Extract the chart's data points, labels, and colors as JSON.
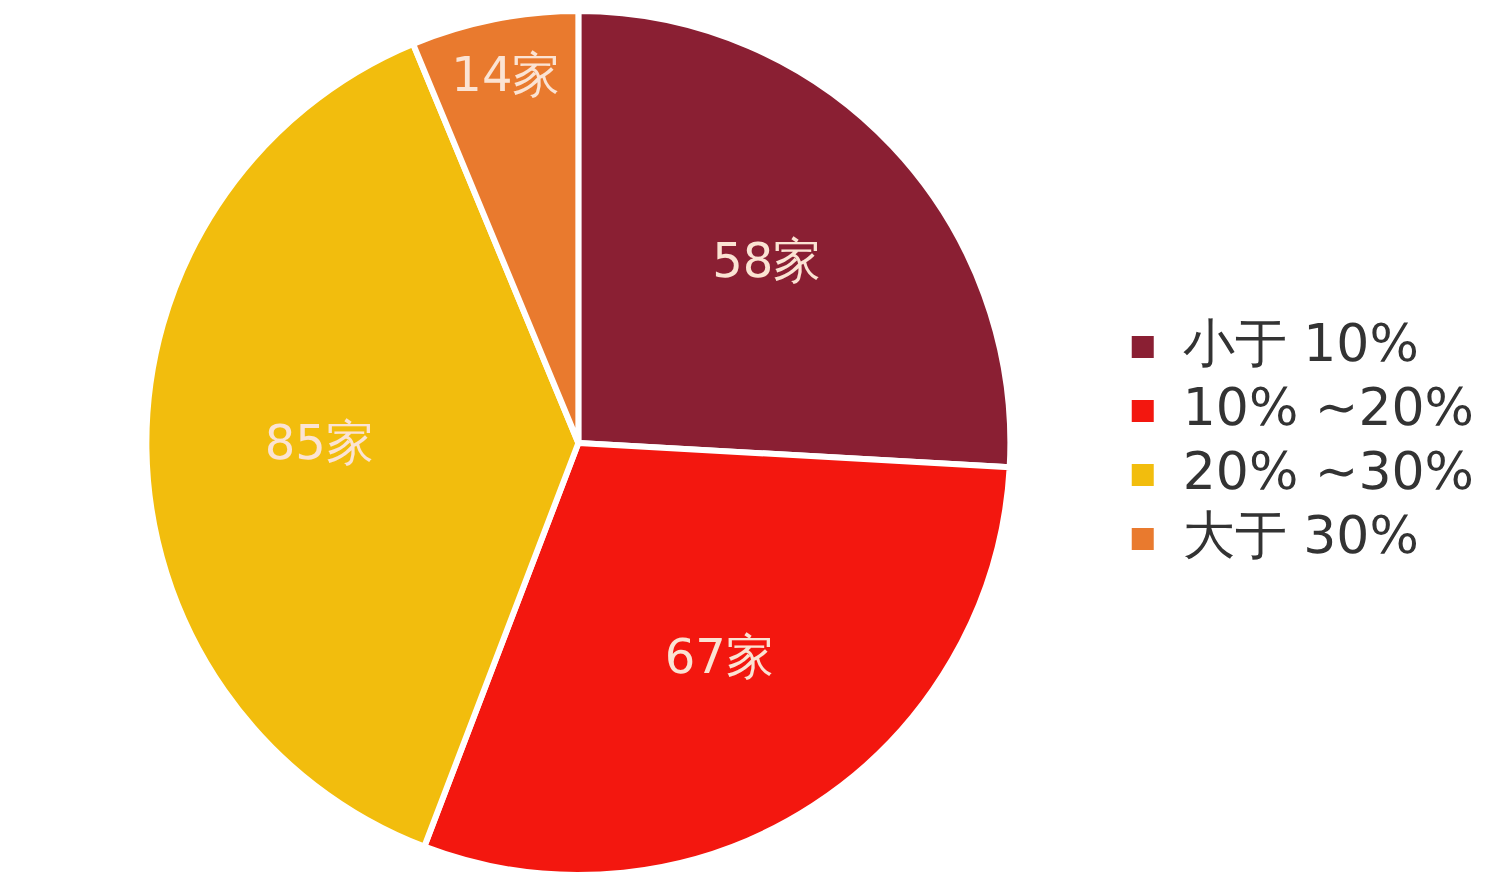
{
  "chart_data": {
    "type": "pie",
    "categories": [
      "小于 10%",
      "10% ~20%",
      "20% ~30%",
      "大于 30%"
    ],
    "values": [
      58,
      67,
      85,
      14
    ],
    "value_labels": [
      "58家",
      "67家",
      "85家",
      "14家"
    ],
    "colors": [
      "#8a1f33",
      "#f3170f",
      "#f2bd0d",
      "#e97a2e"
    ],
    "legend": "right"
  }
}
